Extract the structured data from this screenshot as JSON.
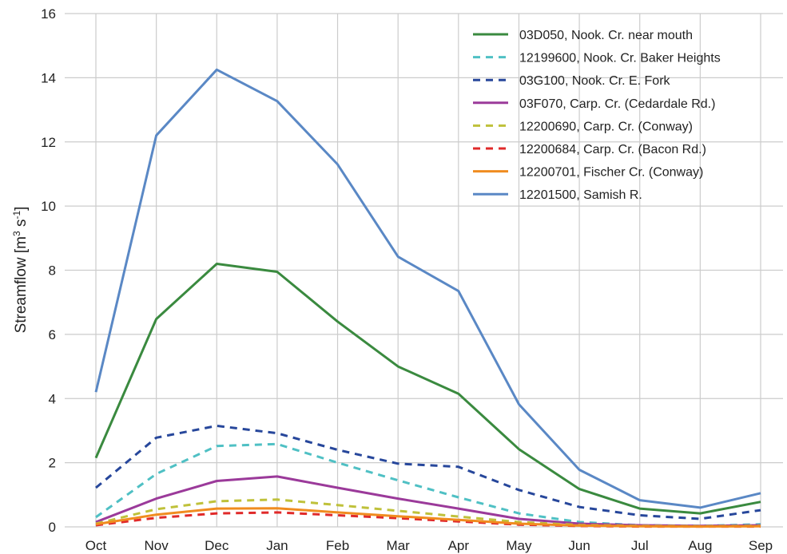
{
  "chart_data": {
    "type": "line",
    "title": "",
    "xlabel": "",
    "ylabel": "Streamflow [m³ s⁻¹]",
    "ylabel_parts": {
      "base": "Streamflow [m",
      "sup1": "3",
      "mid": " s",
      "sup2": "-1",
      "end": "]"
    },
    "categories": [
      "Oct",
      "Nov",
      "Dec",
      "Jan",
      "Feb",
      "Mar",
      "Apr",
      "May",
      "Jun",
      "Jul",
      "Aug",
      "Sep"
    ],
    "ylim": [
      0,
      16
    ],
    "yticks": [
      0,
      2,
      4,
      6,
      8,
      10,
      12,
      14,
      16
    ],
    "grid": true,
    "legend_position": "top-right",
    "series": [
      {
        "name": "03D050, Nook. Cr. near mouth",
        "color": "#3a8a3f",
        "dashed": false,
        "values": [
          2.15,
          6.48,
          8.2,
          7.95,
          6.4,
          5.0,
          4.15,
          2.42,
          1.18,
          0.57,
          0.42,
          0.78
        ]
      },
      {
        "name": "12199600, Nook. Cr. Baker Heights",
        "color": "#4fc0c4",
        "dashed": true,
        "values": [
          0.3,
          1.65,
          2.52,
          2.58,
          2.0,
          1.45,
          0.92,
          0.42,
          0.15,
          0.05,
          0.03,
          0.08
        ]
      },
      {
        "name": "03G100, Nook. Cr. E. Fork",
        "color": "#27479b",
        "dashed": true,
        "values": [
          1.22,
          2.78,
          3.15,
          2.92,
          2.4,
          1.97,
          1.87,
          1.15,
          0.62,
          0.36,
          0.25,
          0.52
        ]
      },
      {
        "name": "03F070, Carp. Cr. (Cedardale Rd.)",
        "color": "#9b3a9a",
        "dashed": false,
        "values": [
          0.15,
          0.88,
          1.43,
          1.57,
          1.22,
          0.88,
          0.57,
          0.25,
          0.1,
          0.05,
          0.03,
          0.05
        ]
      },
      {
        "name": "12200690, Carp. Cr. (Conway)",
        "color": "#bfc13a",
        "dashed": true,
        "values": [
          0.1,
          0.55,
          0.8,
          0.85,
          0.68,
          0.5,
          0.32,
          0.15,
          0.06,
          0.03,
          0.02,
          0.03
        ]
      },
      {
        "name": "12200684, Carp. Cr. (Bacon Rd.)",
        "color": "#e02a2a",
        "dashed": true,
        "values": [
          0.05,
          0.28,
          0.42,
          0.45,
          0.36,
          0.27,
          0.17,
          0.07,
          0.03,
          0.01,
          0.01,
          0.01
        ]
      },
      {
        "name": "12200701, Fischer Cr. (Conway)",
        "color": "#f08c20",
        "dashed": false,
        "values": [
          0.08,
          0.38,
          0.57,
          0.58,
          0.45,
          0.33,
          0.22,
          0.1,
          0.04,
          0.02,
          0.01,
          0.02
        ]
      },
      {
        "name": "12201500, Samish R.",
        "color": "#5a88c5",
        "dashed": false,
        "values": [
          4.2,
          12.2,
          14.25,
          13.27,
          11.3,
          8.42,
          7.35,
          3.82,
          1.78,
          0.83,
          0.6,
          1.05
        ]
      }
    ]
  }
}
